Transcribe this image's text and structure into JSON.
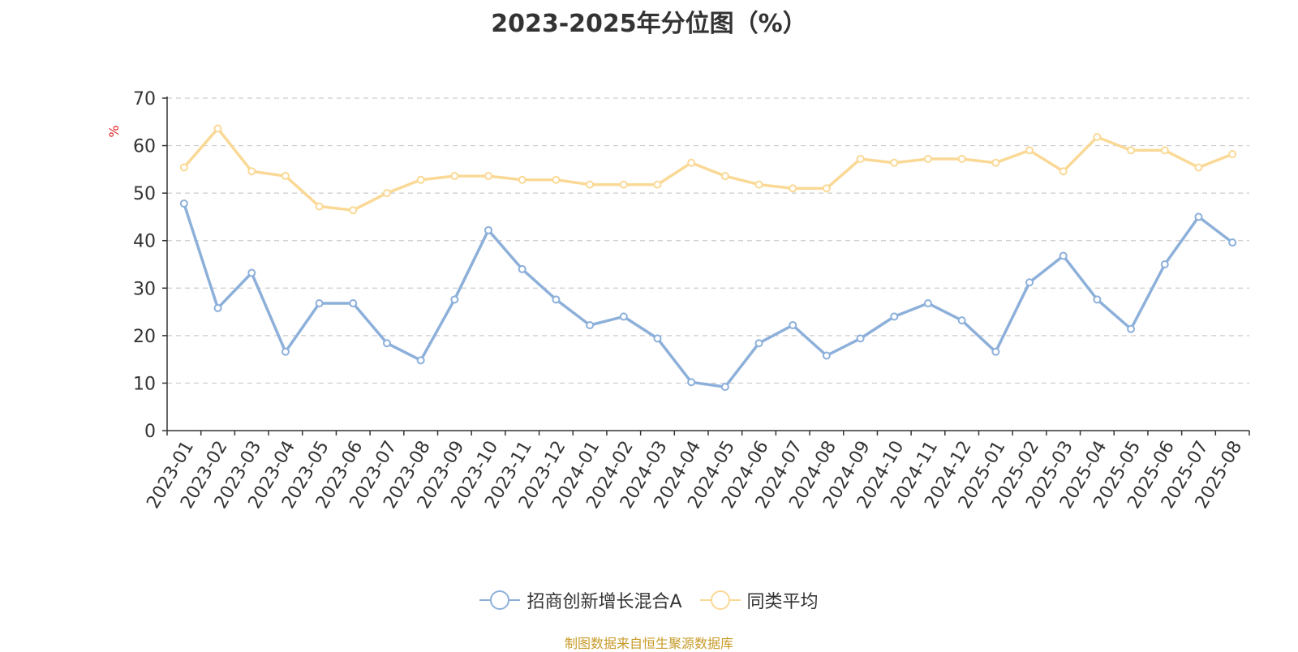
{
  "chart_data": {
    "type": "line",
    "title": "2023-2025年分位图（%）",
    "ylabel": "%",
    "xlabel": "",
    "ylim": [
      0,
      70
    ],
    "yticks": [
      0,
      10,
      20,
      30,
      40,
      50,
      60,
      70
    ],
    "grid": true,
    "legend_position": "bottom-center",
    "categories": [
      "2023-01",
      "2023-02",
      "2023-03",
      "2023-04",
      "2023-05",
      "2023-06",
      "2023-07",
      "2023-08",
      "2023-09",
      "2023-10",
      "2023-11",
      "2023-12",
      "2024-01",
      "2024-02",
      "2024-03",
      "2024-04",
      "2024-05",
      "2024-06",
      "2024-07",
      "2024-08",
      "2024-09",
      "2024-10",
      "2024-11",
      "2024-12",
      "2025-01",
      "2025-02",
      "2025-03",
      "2025-04",
      "2025-05",
      "2025-06",
      "2025-07",
      "2025-08"
    ],
    "series": [
      {
        "name": "招商创新增长混合A",
        "color": "#8DB0DA",
        "values": [
          47.8,
          25.8,
          33.2,
          16.6,
          26.8,
          26.8,
          18.4,
          14.8,
          27.6,
          42.2,
          34.0,
          27.6,
          22.2,
          24.0,
          19.4,
          10.2,
          9.2,
          18.4,
          22.2,
          15.8,
          19.4,
          24.0,
          26.8,
          23.2,
          16.6,
          31.2,
          36.8,
          27.6,
          21.4,
          35.0,
          45.0,
          39.6
        ]
      },
      {
        "name": "同类平均",
        "color": "#FAD996",
        "values": [
          55.4,
          63.6,
          54.6,
          53.6,
          47.2,
          46.4,
          50.0,
          52.8,
          53.6,
          53.6,
          52.8,
          52.8,
          51.8,
          51.8,
          51.8,
          56.4,
          53.6,
          51.8,
          51.0,
          51.0,
          57.2,
          56.4,
          57.2,
          57.2,
          56.4,
          59.0,
          54.6,
          61.8,
          59.0,
          59.0,
          55.4,
          58.2
        ]
      }
    ]
  },
  "source": {
    "text": "制图数据来自恒生聚源数据库",
    "color": "#C89B2A"
  },
  "colors": {
    "axis": "#333333",
    "grid": "#CCCCCC",
    "ylabel": "#E02020"
  }
}
